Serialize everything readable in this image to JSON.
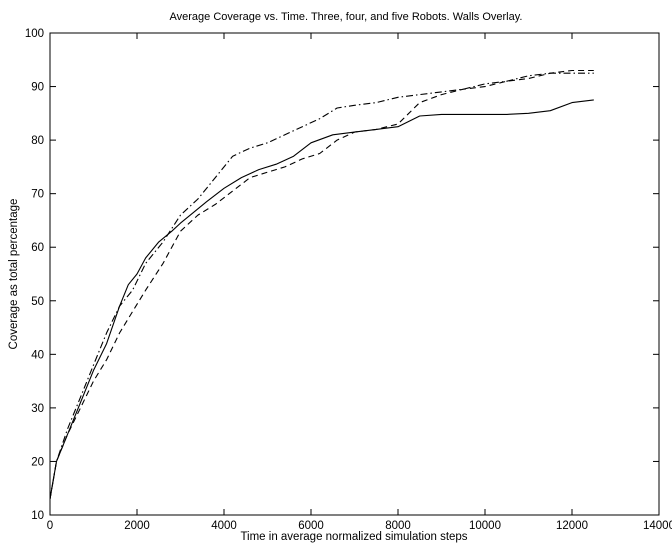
{
  "chart_data": {
    "type": "line",
    "title": "Average Coverage vs. Time. Three, four, and five Robots. Walls Overlay.",
    "xlabel": "Time in average normalized simulation steps",
    "ylabel": "Coverage as total percentage",
    "xlim": [
      0,
      14000
    ],
    "ylim": [
      10,
      100
    ],
    "xticks": [
      0,
      2000,
      4000,
      6000,
      8000,
      10000,
      12000,
      14000
    ],
    "yticks": [
      10,
      20,
      30,
      40,
      50,
      60,
      70,
      80,
      90,
      100
    ],
    "grid": false,
    "legend": "none",
    "series": [
      {
        "style": "solid",
        "color": "#000000",
        "points": [
          [
            0,
            13
          ],
          [
            150,
            20
          ],
          [
            400,
            25
          ],
          [
            700,
            31
          ],
          [
            1000,
            37
          ],
          [
            1300,
            42
          ],
          [
            1600,
            49
          ],
          [
            1800,
            53
          ],
          [
            2000,
            55
          ],
          [
            2200,
            58
          ],
          [
            2500,
            61
          ],
          [
            2800,
            63
          ],
          [
            3000,
            64.5
          ],
          [
            3300,
            66.5
          ],
          [
            3600,
            68.5
          ],
          [
            4000,
            71
          ],
          [
            4400,
            73
          ],
          [
            4800,
            74.5
          ],
          [
            5200,
            75.5
          ],
          [
            5600,
            77
          ],
          [
            6000,
            79.5
          ],
          [
            6500,
            81
          ],
          [
            7000,
            81.5
          ],
          [
            7500,
            82
          ],
          [
            8000,
            82.5
          ],
          [
            8500,
            84.5
          ],
          [
            9000,
            84.8
          ],
          [
            9500,
            84.8
          ],
          [
            10000,
            84.8
          ],
          [
            10500,
            84.8
          ],
          [
            11000,
            85
          ],
          [
            11500,
            85.5
          ],
          [
            12000,
            87
          ],
          [
            12500,
            87.5
          ]
        ]
      },
      {
        "style": "dashed",
        "color": "#000000",
        "points": [
          [
            0,
            13
          ],
          [
            150,
            20
          ],
          [
            400,
            25
          ],
          [
            700,
            30
          ],
          [
            1000,
            35
          ],
          [
            1300,
            39
          ],
          [
            1600,
            44
          ],
          [
            1900,
            48
          ],
          [
            2200,
            52
          ],
          [
            2600,
            57
          ],
          [
            3000,
            63
          ],
          [
            3400,
            66
          ],
          [
            3800,
            68
          ],
          [
            4200,
            70.5
          ],
          [
            4600,
            73
          ],
          [
            5000,
            74
          ],
          [
            5400,
            75
          ],
          [
            5800,
            76.5
          ],
          [
            6200,
            77.5
          ],
          [
            6600,
            80
          ],
          [
            7000,
            81.5
          ],
          [
            7500,
            82
          ],
          [
            8000,
            83
          ],
          [
            8500,
            87
          ],
          [
            9000,
            88.5
          ],
          [
            9500,
            89.5
          ],
          [
            10000,
            90
          ],
          [
            10500,
            91
          ],
          [
            11000,
            91.5
          ],
          [
            11500,
            92.5
          ],
          [
            12000,
            93
          ],
          [
            12500,
            93
          ]
        ]
      },
      {
        "style": "dashdot",
        "color": "#000000",
        "points": [
          [
            0,
            13
          ],
          [
            150,
            20
          ],
          [
            400,
            26
          ],
          [
            700,
            32
          ],
          [
            1000,
            38
          ],
          [
            1300,
            44
          ],
          [
            1600,
            49
          ],
          [
            1900,
            52
          ],
          [
            2200,
            57
          ],
          [
            2600,
            61
          ],
          [
            3000,
            66
          ],
          [
            3400,
            69
          ],
          [
            3800,
            73
          ],
          [
            4200,
            77
          ],
          [
            4600,
            78.5
          ],
          [
            5000,
            79.5
          ],
          [
            5400,
            81
          ],
          [
            5800,
            82.5
          ],
          [
            6200,
            84
          ],
          [
            6600,
            86
          ],
          [
            7000,
            86.5
          ],
          [
            7500,
            87
          ],
          [
            8000,
            88
          ],
          [
            8500,
            88.5
          ],
          [
            9000,
            89
          ],
          [
            9500,
            89.5
          ],
          [
            10000,
            90.5
          ],
          [
            10500,
            91
          ],
          [
            11000,
            92
          ],
          [
            11500,
            92.5
          ],
          [
            12000,
            92.5
          ],
          [
            12500,
            92.5
          ]
        ]
      }
    ]
  }
}
